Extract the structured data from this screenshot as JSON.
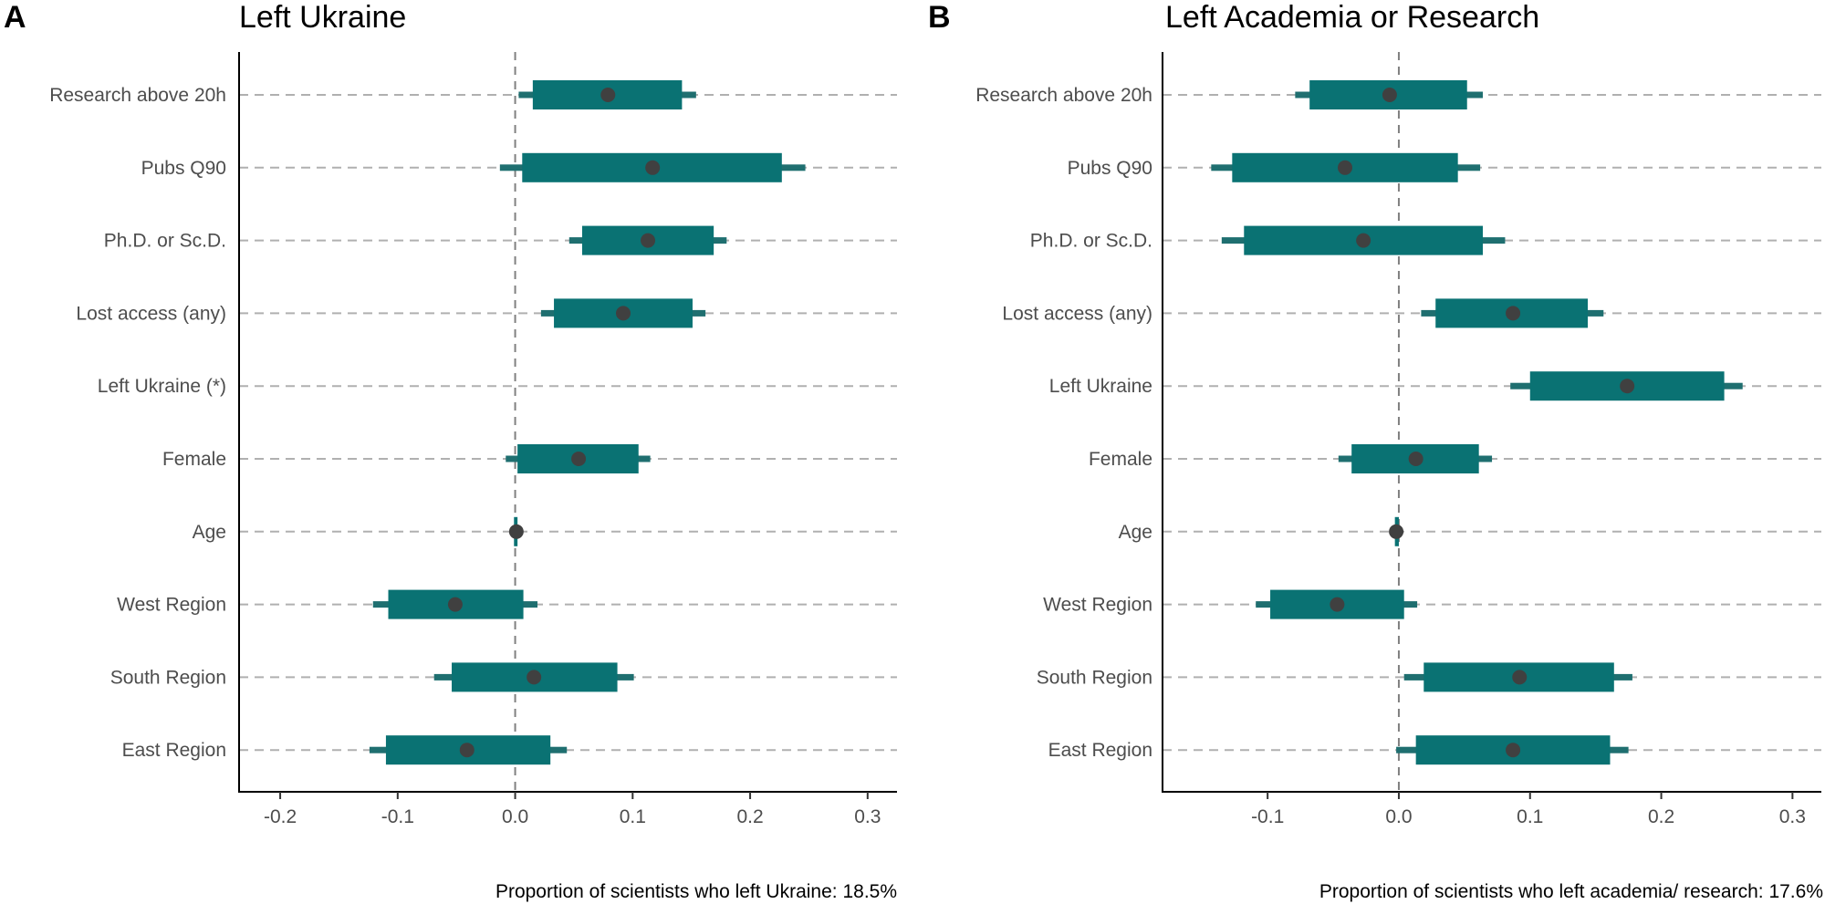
{
  "colors": {
    "interval": "#0a7273",
    "point": "#404040"
  },
  "chart_data": [
    {
      "type": "coefficient-interval",
      "letter": "A",
      "title": "Left Ukraine",
      "caption": "Proportion of scientists who left Ukraine: 18.5%",
      "xlim": [
        -0.235,
        0.325
      ],
      "xticks": [
        -0.2,
        -0.1,
        0.0,
        0.1,
        0.2,
        0.3
      ],
      "xtick_labels": [
        "-0.2",
        "-0.1",
        "0.0",
        "0.1",
        "0.2",
        "0.3"
      ],
      "rows": [
        {
          "label": "Research above 20h",
          "estimate": 0.079,
          "ci90": [
            0.015,
            0.142
          ],
          "ci95": [
            0.003,
            0.154
          ]
        },
        {
          "label": "Pubs Q90",
          "estimate": 0.117,
          "ci90": [
            0.006,
            0.227
          ],
          "ci95": [
            -0.013,
            0.247
          ]
        },
        {
          "label": "Ph.D. or Sc.D.",
          "estimate": 0.113,
          "ci90": [
            0.057,
            0.169
          ],
          "ci95": [
            0.046,
            0.18
          ]
        },
        {
          "label": "Lost access (any)",
          "estimate": 0.092,
          "ci90": [
            0.033,
            0.151
          ],
          "ci95": [
            0.022,
            0.162
          ]
        },
        {
          "label": "Left Ukraine (*)",
          "estimate": null,
          "ci90": null,
          "ci95": null
        },
        {
          "label": "Female",
          "estimate": 0.054,
          "ci90": [
            0.002,
            0.105
          ],
          "ci95": [
            -0.008,
            0.115
          ]
        },
        {
          "label": "Age",
          "estimate": 0.001,
          "ci90": [
            -0.001,
            0.002
          ],
          "ci95": [
            -0.002,
            0.003
          ]
        },
        {
          "label": "West Region",
          "estimate": -0.051,
          "ci90": [
            -0.108,
            0.007
          ],
          "ci95": [
            -0.121,
            0.019
          ]
        },
        {
          "label": "South Region",
          "estimate": 0.016,
          "ci90": [
            -0.054,
            0.087
          ],
          "ci95": [
            -0.069,
            0.101
          ]
        },
        {
          "label": "East Region",
          "estimate": -0.041,
          "ci90": [
            -0.11,
            0.03
          ],
          "ci95": [
            -0.124,
            0.044
          ]
        }
      ]
    },
    {
      "type": "coefficient-interval",
      "letter": "B",
      "title": "Left Academia or Research",
      "caption": "Proportion of scientists who left academia/ research: 17.6%",
      "xlim": [
        -0.178,
        0.322
      ],
      "xticks": [
        -0.1,
        0.0,
        0.1,
        0.2,
        0.3
      ],
      "xtick_labels": [
        "-0.1",
        "0.0",
        "0.1",
        "0.2",
        "0.3"
      ],
      "rows": [
        {
          "label": "Research above 20h",
          "estimate": -0.007,
          "ci90": [
            -0.068,
            0.052
          ],
          "ci95": [
            -0.079,
            0.064
          ]
        },
        {
          "label": "Pubs Q90",
          "estimate": -0.041,
          "ci90": [
            -0.127,
            0.045
          ],
          "ci95": [
            -0.143,
            0.062
          ]
        },
        {
          "label": "Ph.D. or Sc.D.",
          "estimate": -0.027,
          "ci90": [
            -0.118,
            0.064
          ],
          "ci95": [
            -0.135,
            0.081
          ]
        },
        {
          "label": "Lost access (any)",
          "estimate": 0.087,
          "ci90": [
            0.028,
            0.144
          ],
          "ci95": [
            0.017,
            0.156
          ]
        },
        {
          "label": "Left Ukraine",
          "estimate": 0.174,
          "ci90": [
            0.1,
            0.248
          ],
          "ci95": [
            0.085,
            0.262
          ]
        },
        {
          "label": "Female",
          "estimate": 0.013,
          "ci90": [
            -0.036,
            0.061
          ],
          "ci95": [
            -0.046,
            0.071
          ]
        },
        {
          "label": "Age",
          "estimate": -0.002,
          "ci90": [
            -0.003,
            0.0
          ],
          "ci95": [
            -0.004,
            0.001
          ]
        },
        {
          "label": "West Region",
          "estimate": -0.047,
          "ci90": [
            -0.098,
            0.004
          ],
          "ci95": [
            -0.109,
            0.014
          ]
        },
        {
          "label": "South Region",
          "estimate": 0.092,
          "ci90": [
            0.019,
            0.164
          ],
          "ci95": [
            0.004,
            0.178
          ]
        },
        {
          "label": "East Region",
          "estimate": 0.087,
          "ci90": [
            0.013,
            0.161
          ],
          "ci95": [
            -0.002,
            0.175
          ]
        }
      ]
    }
  ]
}
